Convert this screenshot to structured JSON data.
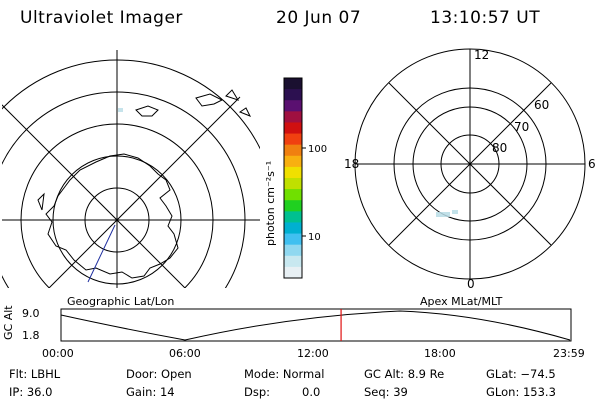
{
  "header": {
    "title": "Ultraviolet Imager",
    "date": "20 Jun 07",
    "time": "13:10:57 UT"
  },
  "left_panel": {
    "label": "Geographic Lat/Lon"
  },
  "right_panel": {
    "label": "Apex MLat/MLT",
    "mlt_labels": [
      "12",
      "18",
      "6",
      "0"
    ],
    "mlat_labels": [
      "60",
      "70",
      "80"
    ]
  },
  "colorbar": {
    "unit_label": "photon cm⁻²s⁻¹",
    "tick_labels": [
      "100",
      "10"
    ],
    "scale": "log",
    "colors": [
      "#1a1030",
      "#2c1050",
      "#5a1070",
      "#a01040",
      "#d01010",
      "#f04010",
      "#f08010",
      "#f8b010",
      "#f0e000",
      "#c0e000",
      "#70e000",
      "#20d020",
      "#00c090",
      "#00b0d0",
      "#40c0f0",
      "#90d8f0",
      "#c8e8f0",
      "#e8f0f4"
    ]
  },
  "timeline": {
    "y_axis_label": "GC Alt",
    "y_ticks": [
      "9.0",
      "1.8"
    ],
    "x_ticks": [
      "00:00",
      "06:00",
      "12:00",
      "18:00",
      "23:59"
    ],
    "marker_time_hours": 13.18,
    "marker_color": "#e01010"
  },
  "info": {
    "flt": "Flt: LBHL",
    "ip": "IP: 36.0",
    "door": "Door: Open",
    "gain": "Gain: 14",
    "mode": "Mode: Normal",
    "dsp_label": "Dsp:",
    "dsp_value": "0.0",
    "gc_alt": "GC Alt: 8.9 Re",
    "seq": "Seq: 39",
    "glat": "GLat: −74.5",
    "glon": "GLon: 153.3"
  }
}
